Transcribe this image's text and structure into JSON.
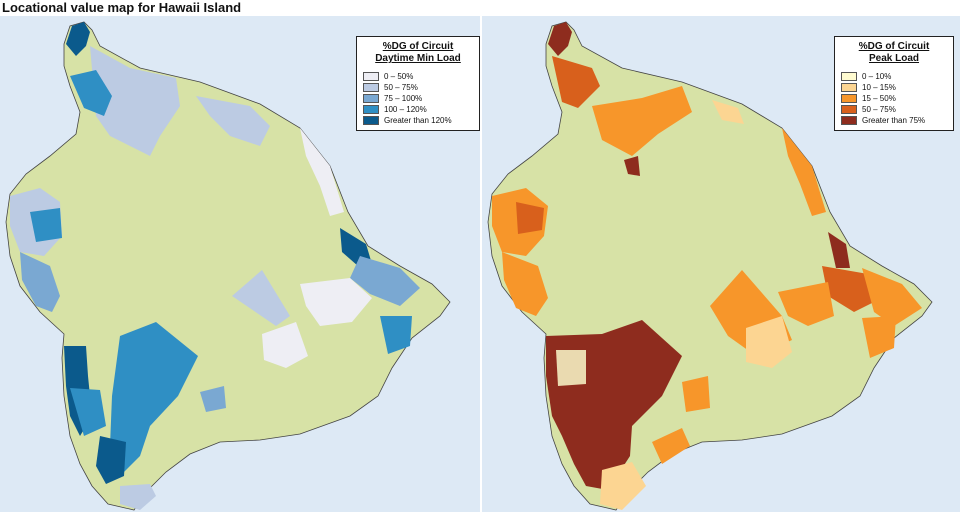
{
  "title": "Locational value map for Hawaii Island",
  "maps": [
    {
      "legend": {
        "title_line1": "%DG of Circuit",
        "title_line2": "Daytime Min Load",
        "items": [
          {
            "label": "0 – 50%",
            "color": "#eeeef4"
          },
          {
            "label": "50 – 75%",
            "color": "#bccbe3"
          },
          {
            "label": "75 – 100%",
            "color": "#7aa8d2"
          },
          {
            "label": "100 – 120%",
            "color": "#2f8fc4"
          },
          {
            "label": "Greater than 120%",
            "color": "#0b5a8c"
          }
        ]
      }
    },
    {
      "legend": {
        "title_line1": "%DG of Circuit",
        "title_line2": "Peak Load",
        "items": [
          {
            "label": "0 – 10%",
            "color": "#fffbd0"
          },
          {
            "label": "10 – 15%",
            "color": "#fcd592"
          },
          {
            "label": "15 – 50%",
            "color": "#f7962a"
          },
          {
            "label": "50 – 75%",
            "color": "#d8601c"
          },
          {
            "label": "Greater than 75%",
            "color": "#8e2c1e"
          }
        ]
      }
    }
  ],
  "colors": {
    "land": "#d7e2a6",
    "water": "#dde9f5"
  }
}
